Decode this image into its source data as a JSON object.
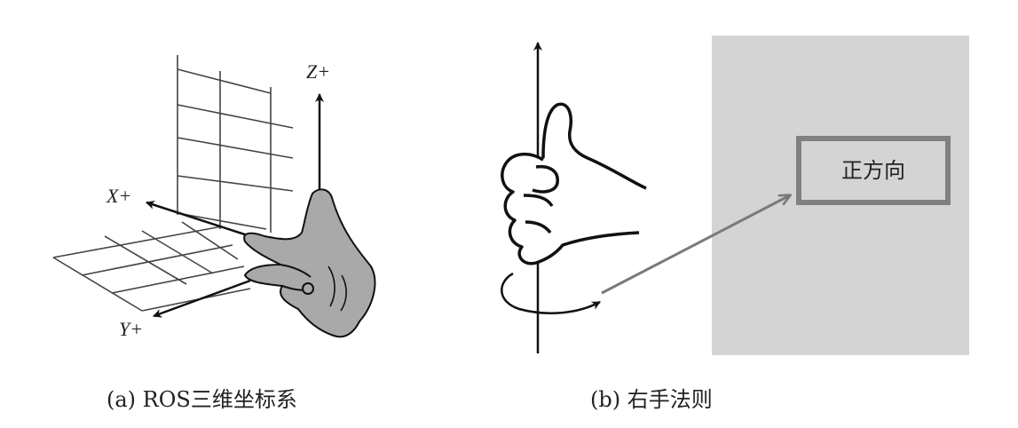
{
  "panel_a": {
    "axis_z": "Z+",
    "axis_x": "X+",
    "axis_y": "Y+",
    "caption": "(a) ROS三维坐标系"
  },
  "panel_b": {
    "box_label": "正方向",
    "caption": "(b) 右手法则"
  },
  "colors": {
    "line": "#111111",
    "grid": "#444444",
    "hand_fill": "#a9a9a9",
    "panel_bg": "#d4d4d4",
    "box_border": "#808080",
    "arrow": "#7a7a7a"
  }
}
